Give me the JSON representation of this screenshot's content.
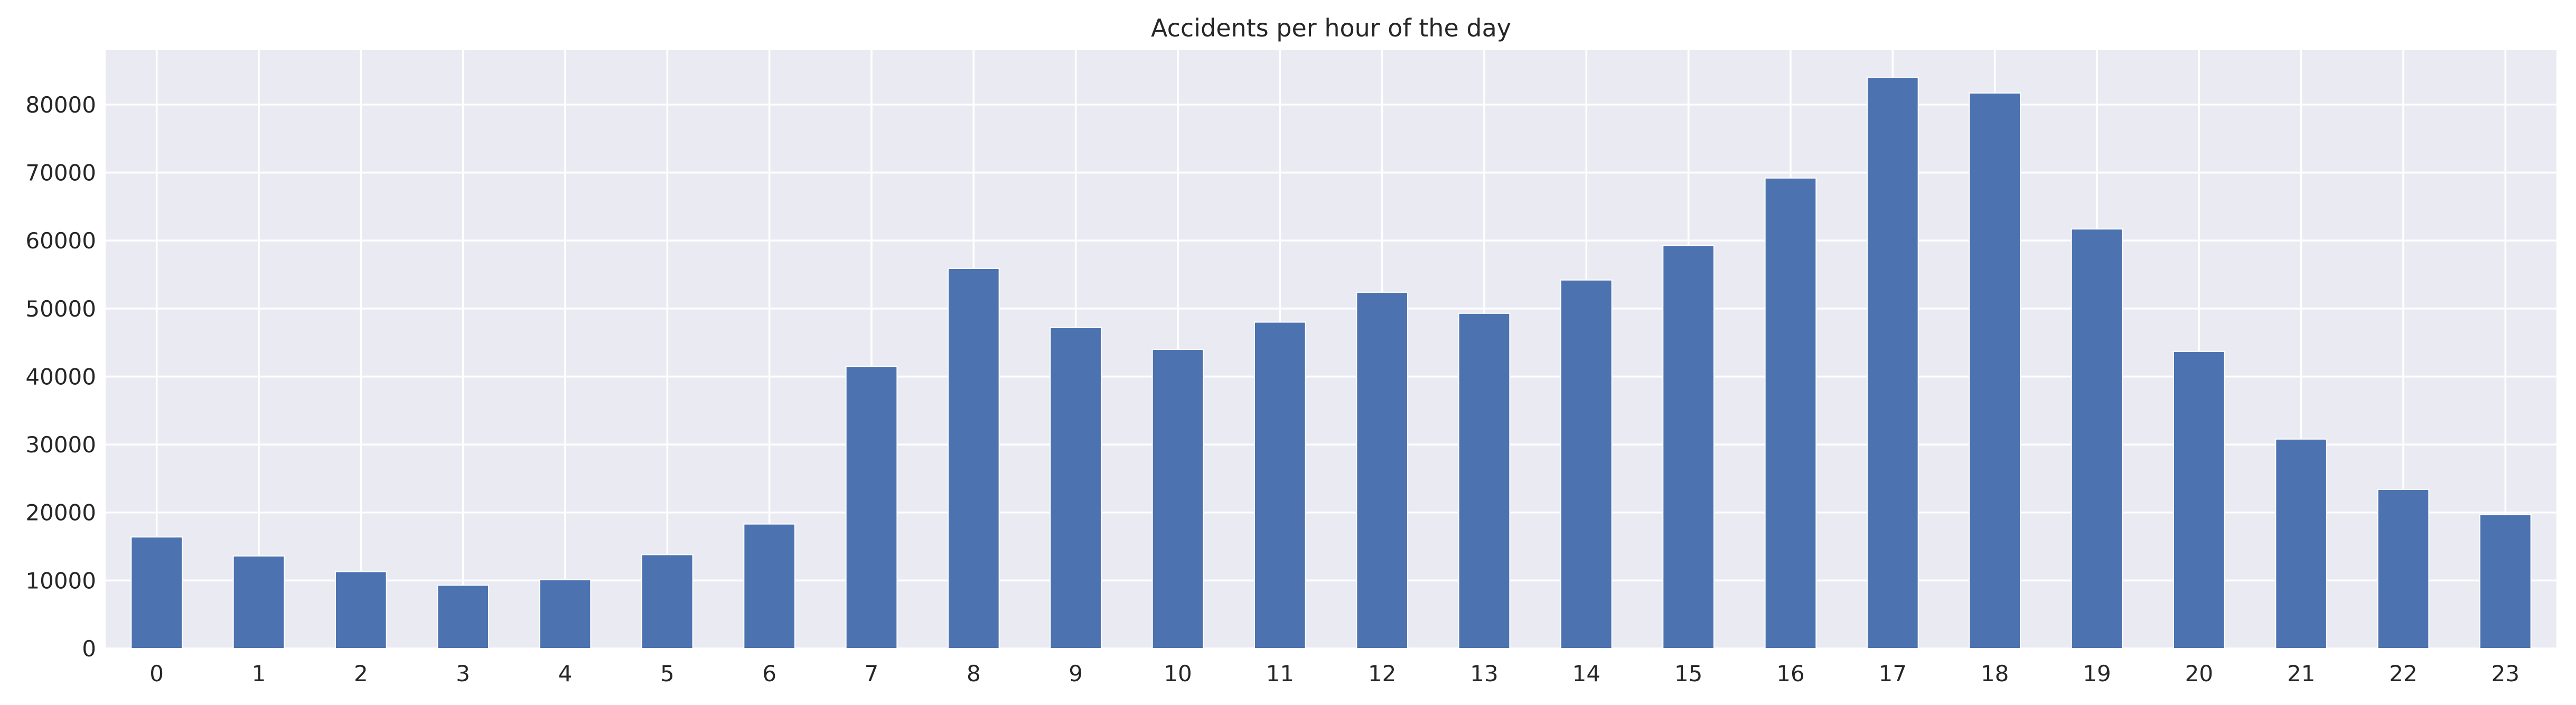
{
  "colors": {
    "bar": "#4c72b0",
    "plot_background": "#eaeaf2",
    "grid": "#ffffff",
    "text": "#262626"
  },
  "chart_data": {
    "type": "bar",
    "title": "Accidents per hour of the day",
    "xlabel": "",
    "ylabel": "",
    "categories": [
      "0",
      "1",
      "2",
      "3",
      "4",
      "5",
      "6",
      "7",
      "8",
      "9",
      "10",
      "11",
      "12",
      "13",
      "14",
      "15",
      "16",
      "17",
      "18",
      "19",
      "20",
      "21",
      "22",
      "23"
    ],
    "series": [
      {
        "values": [
          16400,
          13600,
          11300,
          9300,
          10100,
          13800,
          18300,
          41500,
          55900,
          47200,
          44000,
          48000,
          52400,
          49300,
          54200,
          59300,
          69200,
          84000,
          81700,
          61700,
          43700,
          30800,
          23400,
          19700
        ]
      }
    ],
    "ylim": [
      0,
      88000
    ],
    "yticks": [
      0,
      10000,
      20000,
      30000,
      40000,
      50000,
      60000,
      70000,
      80000
    ],
    "grid": true,
    "legend": "none"
  }
}
